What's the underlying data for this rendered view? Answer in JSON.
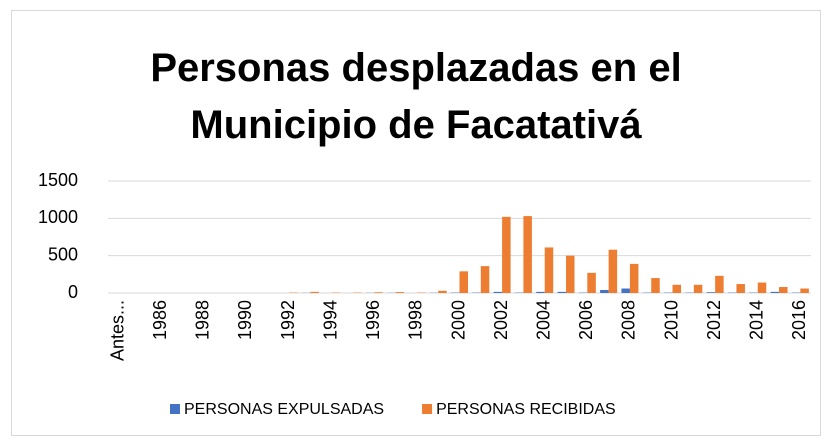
{
  "chart_data": {
    "type": "bar",
    "title": "Personas desplazadas en el Municipio de Facatativá",
    "categories": [
      "Antes...",
      null,
      "1986",
      null,
      "1988",
      null,
      "1990",
      null,
      "1992",
      null,
      "1994",
      null,
      "1996",
      null,
      "1998",
      null,
      "2000",
      null,
      "2002",
      null,
      "2004",
      null,
      "2006",
      null,
      "2008",
      null,
      "2010",
      null,
      "2012",
      null,
      "2014",
      null,
      "2016"
    ],
    "series": [
      {
        "name": "PERSONAS EXPULSADAS",
        "color": "#4472c4",
        "values": [
          0,
          0,
          0,
          0,
          0,
          0,
          0,
          0,
          0,
          2,
          0,
          0,
          2,
          2,
          0,
          3,
          5,
          5,
          15,
          5,
          15,
          15,
          5,
          40,
          60,
          5,
          5,
          5,
          10,
          5,
          5,
          15,
          5
        ]
      },
      {
        "name": "PERSONAS RECIBIDAS",
        "color": "#ed7d31",
        "values": [
          0,
          0,
          0,
          0,
          0,
          0,
          0,
          0,
          5,
          15,
          5,
          5,
          10,
          12,
          5,
          30,
          290,
          360,
          1020,
          1030,
          610,
          500,
          270,
          580,
          390,
          200,
          110,
          110,
          230,
          120,
          140,
          80,
          60
        ]
      }
    ],
    "ylim": [
      0,
      1500
    ],
    "yticks": [
      0,
      500,
      1000,
      1500
    ],
    "grid": true,
    "legend": "bottom"
  }
}
